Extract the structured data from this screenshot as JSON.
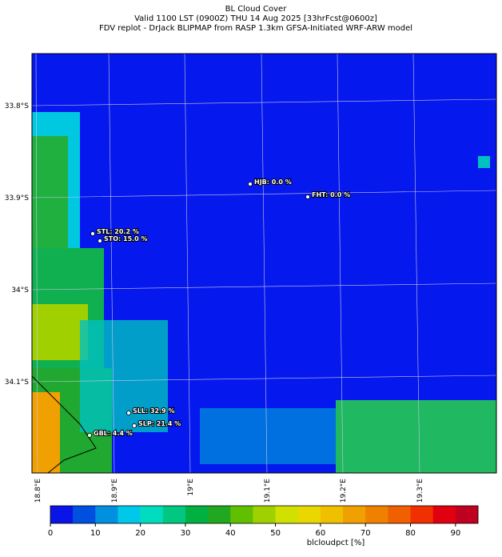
{
  "header": {
    "title": "BL Cloud Cover",
    "subtitle": "Valid 1100 LST (0900Z) THU 14 Aug 2025 [33hrFcst@0600z]",
    "source": "FDV replot - DrJack BLIPMAP from RASP 1.3km GFSA-Initiated WRF-ARW model"
  },
  "map": {
    "lat_labels": [
      "33.8°S",
      "33.9°S",
      "34°S",
      "34.1°S"
    ],
    "lon_labels": [
      "18.8°E",
      "18.9°E",
      "19°E",
      "19.1°E",
      "19.2°E",
      "19.3°E"
    ],
    "stations": [
      {
        "label": "HJB: 0.0 %"
      },
      {
        "label": "FHT: 0.0 %"
      },
      {
        "label": "STL: 20.2 %"
      },
      {
        "label": "STO: 15.0 %"
      },
      {
        "label": "SLL: 32.9 %"
      },
      {
        "label": "SLP: 21.4 %"
      },
      {
        "label": "GBL: 4.4 %"
      }
    ]
  },
  "colorbar": {
    "label": "blcloudpct [%]",
    "lim": [
      0,
      95
    ],
    "ticks": [
      0,
      10,
      20,
      30,
      40,
      50,
      60,
      70,
      80,
      90
    ],
    "colors": [
      "#0a14e6",
      "#0050e0",
      "#0090e0",
      "#00c8e8",
      "#00dcc0",
      "#00c880",
      "#00b040",
      "#20a820",
      "#60c000",
      "#a0d000",
      "#d0e000",
      "#e8d800",
      "#f0c000",
      "#f0a000",
      "#f08000",
      "#f06000",
      "#f03000",
      "#e00010",
      "#c00020"
    ]
  }
}
